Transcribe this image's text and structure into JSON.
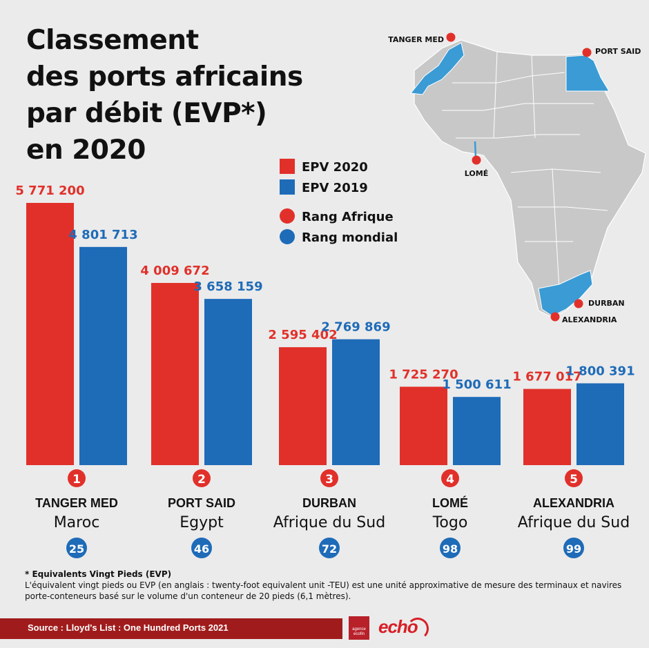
{
  "title_lines": [
    "Classement",
    "des ports africains",
    "par débit (EVP*)",
    "en 2020"
  ],
  "legend": {
    "items": [
      {
        "label": "EPV 2020",
        "shape": "square",
        "color": "#e1302a"
      },
      {
        "label": "EPV 2019",
        "shape": "square",
        "color": "#1e6bb8"
      },
      {
        "label": "Rang Afrique",
        "shape": "circle",
        "color": "#e1302a"
      },
      {
        "label": "Rang  mondial",
        "shape": "circle",
        "color": "#1e6bb8"
      }
    ]
  },
  "chart_data": {
    "type": "bar",
    "title": "Classement des ports africains par débit (EVP*) en 2020",
    "categories": [
      "TANGER MED",
      "PORT SAID",
      "DURBAN",
      "LOMÉ",
      "ALEXANDRIA"
    ],
    "countries": [
      "Maroc",
      "Egypt",
      "Afrique du Sud",
      "Togo",
      "Afrique du Sud"
    ],
    "africa_rank": [
      "1",
      "2",
      "3",
      "4",
      "5"
    ],
    "world_rank": [
      "25",
      "46",
      "72",
      "98",
      "99"
    ],
    "series": [
      {
        "name": "EPV 2020",
        "color": "#e1302a",
        "values": [
          5771200,
          4009672,
          2595402,
          1725270,
          1677017
        ],
        "labels": [
          "5 771 200",
          "4 009 672",
          "2 595 402",
          "1 725 270",
          "1 677 017"
        ]
      },
      {
        "name": "EPV 2019",
        "color": "#1e6bb8",
        "values": [
          4801713,
          3658159,
          2769869,
          1500611,
          1800391
        ],
        "labels": [
          "4 801 713",
          "3 658 159",
          "2 769 869",
          "1 500 611",
          "1 800 391"
        ]
      }
    ],
    "ylim": [
      0,
      5771200
    ],
    "grid": false,
    "legend_position": "top-center"
  },
  "map": {
    "highlight_color": "#3a9bd5",
    "land_color": "#c8c8c8",
    "labels": [
      "TANGER MED",
      "PORT SAID",
      "LOMÉ",
      "DURBAN",
      "ALEXANDRIA"
    ]
  },
  "footnote": {
    "title": "* Equivalents Vingt Pieds (EVP)",
    "text": "L'équivalent vingt pieds ou EVP (en anglais : twenty-foot equivalent unit -TEU) est une unité approximative de mesure des terminaux et navires porte-conteneurs basé sur le volume d'un conteneur de 20 pieds (6,1 mètres)."
  },
  "footer": {
    "source": "Source : Lloyd's List : One Hundred Ports 2021",
    "logo_agency": "agence ecofin",
    "logo_echo": "echo"
  }
}
